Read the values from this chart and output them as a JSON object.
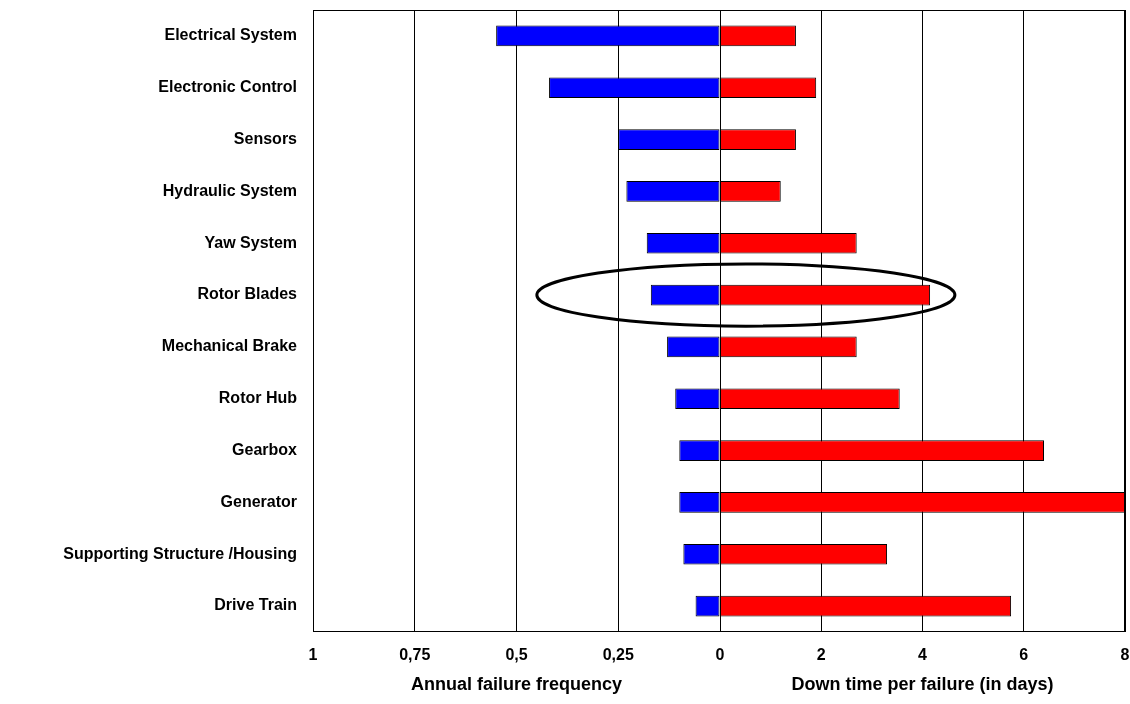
{
  "chart_data": [
    {
      "type": "bar",
      "orientation": "horizontal",
      "grid": "x",
      "legend": false,
      "xlabel": "Annual failure frequency",
      "categories": [
        "Electrical System",
        "Electronic Control",
        "Sensors",
        "Hydraulic System",
        "Yaw System",
        "Rotor Blades",
        "Mechanical Brake",
        "Rotor Hub",
        "Gearbox",
        "Generator",
        "Supporting Structure /Housing",
        "Drive Train"
      ],
      "series": [
        {
          "color": "#0000ff",
          "values": [
            0.55,
            0.42,
            0.25,
            0.23,
            0.18,
            0.17,
            0.13,
            0.11,
            0.1,
            0.1,
            0.09,
            0.06
          ]
        }
      ],
      "xlim": [
        1,
        0
      ],
      "xticks": [
        1,
        {
          "value": 0.75,
          "label": "0,75"
        },
        {
          "value": 0.5,
          "label": "0,5"
        },
        {
          "value": 0.25,
          "label": "0,25"
        },
        0
      ]
    },
    {
      "type": "bar",
      "orientation": "horizontal",
      "grid": "x",
      "legend": false,
      "tick_labels": "x",
      "xlabel": "Down time per failure (in days)",
      "categories": [
        null,
        null,
        null,
        null,
        null,
        null,
        null,
        null,
        null,
        null,
        null,
        null
      ],
      "series": [
        {
          "color": "#ff0000",
          "values": [
            1.5,
            1.9,
            1.5,
            1.2,
            2.7,
            4.15,
            2.7,
            3.55,
            6.4,
            8.0,
            3.3,
            5.75
          ]
        }
      ],
      "xlim": [
        0,
        8
      ],
      "xticks": [
        2,
        4,
        6,
        8
      ]
    }
  ]
}
